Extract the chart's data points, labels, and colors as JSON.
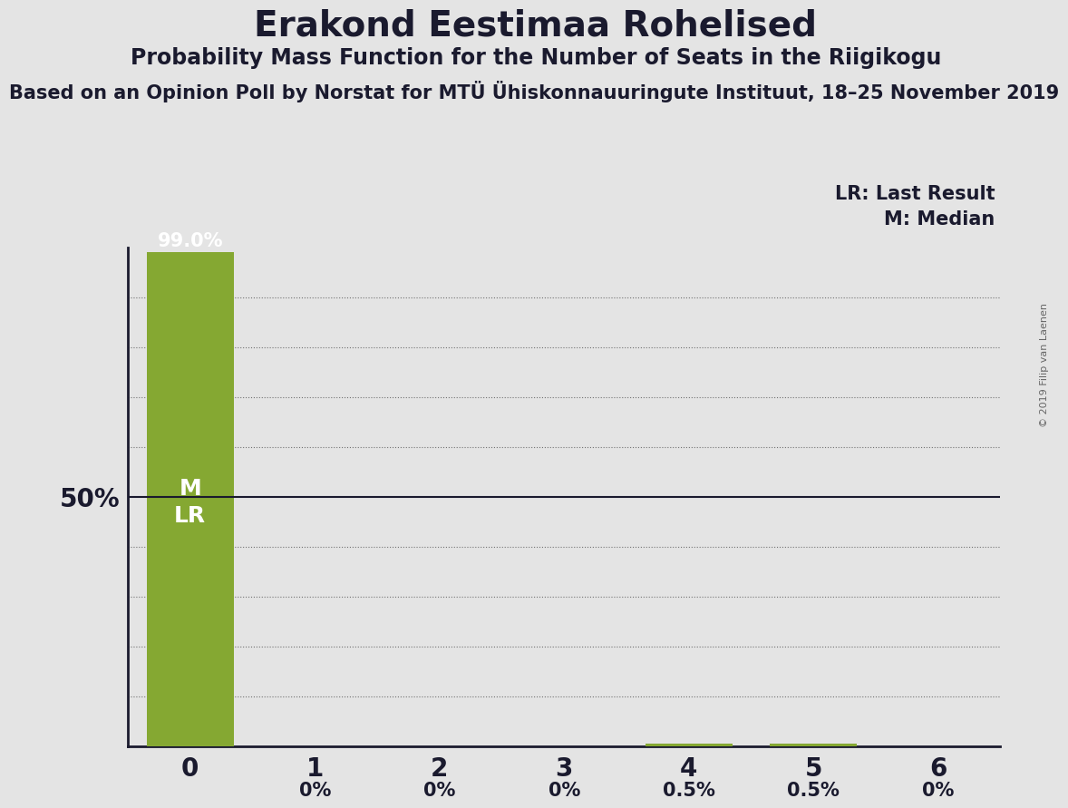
{
  "title": "Erakond Eestimaa Rohelised",
  "subtitle": "Probability Mass Function for the Number of Seats in the Riigikogu",
  "source_line": "Based on an Opinion Poll by Norstat for MTÜ Ühiskonnauuringute Instituut, 18–25 November 2019",
  "copyright": "© 2019 Filip van Laenen",
  "categories": [
    0,
    1,
    2,
    3,
    4,
    5,
    6
  ],
  "values": [
    0.99,
    0.0,
    0.0,
    0.0,
    0.005,
    0.005,
    0.0
  ],
  "bar_color": "#85a832",
  "background_color": "#e4e4e4",
  "title_color": "#1a1a2e",
  "text_color": "#1a1a2e",
  "ylim": [
    0,
    1.0
  ],
  "y_label_50": "50%",
  "legend_lr": "LR: Last Result",
  "legend_m": "M: Median"
}
